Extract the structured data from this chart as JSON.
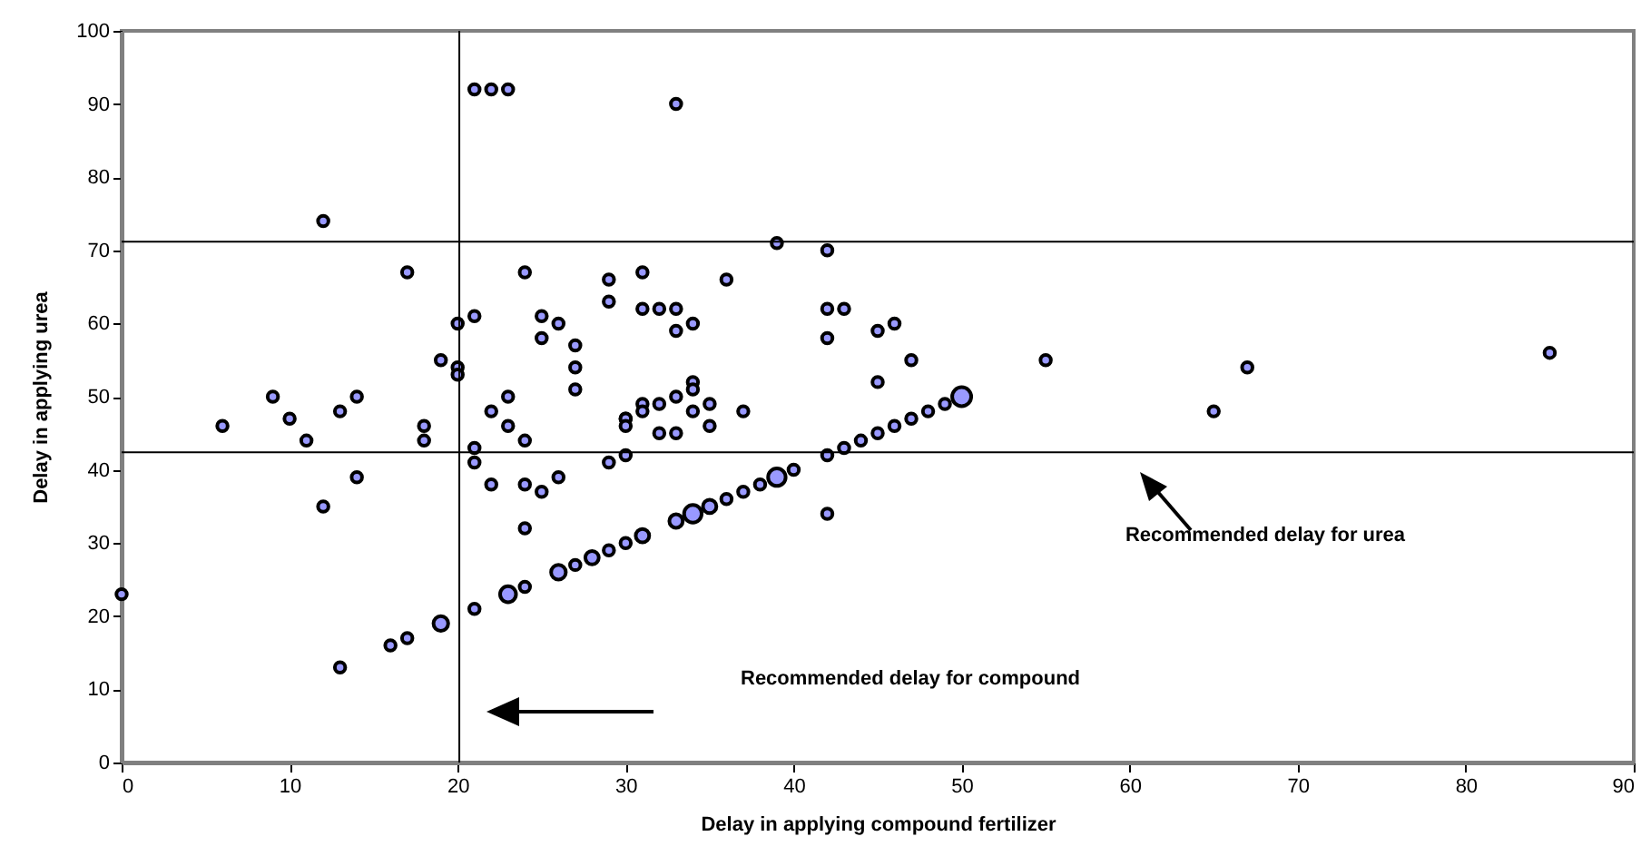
{
  "chart_data": {
    "type": "bubble",
    "xlabel": "Delay in applying compound fertilizer",
    "ylabel": "Delay in applying urea",
    "xlim": [
      0,
      90
    ],
    "xticks": [
      0,
      10,
      20,
      30,
      40,
      50,
      60,
      70,
      80,
      90
    ],
    "ylim": [
      0,
      100
    ],
    "yticks": [
      0,
      10,
      20,
      30,
      40,
      50,
      60,
      70,
      80,
      90,
      100
    ],
    "grid": false,
    "marker": "circle",
    "series": [
      {
        "color": "#9999ff",
        "x": [
          21,
          22,
          23,
          12,
          17,
          24,
          20,
          21,
          25,
          26,
          25,
          27,
          27,
          27,
          19,
          20,
          20,
          9,
          14,
          23,
          13,
          22,
          6,
          10,
          11,
          18,
          18,
          21,
          21,
          23,
          24,
          14,
          12,
          22,
          24,
          25,
          26,
          24,
          0,
          19,
          16,
          17,
          13,
          21,
          23,
          24,
          26,
          27,
          33,
          39,
          42,
          29,
          31,
          36,
          29,
          31,
          32,
          33,
          42,
          43,
          33,
          34,
          42,
          45,
          46,
          47,
          55,
          45,
          34,
          34,
          31,
          31,
          32,
          33,
          35,
          30,
          34,
          37,
          50,
          49,
          48,
          47,
          30,
          30,
          35,
          32,
          33,
          29,
          30,
          42,
          43,
          44,
          45,
          46,
          42,
          40,
          39,
          38,
          37,
          36,
          35,
          34,
          33,
          31,
          30,
          29,
          28,
          67,
          65,
          85
        ],
        "values": [
          92,
          92,
          92,
          74,
          67,
          67,
          60,
          61,
          61,
          60,
          58,
          57,
          54,
          51,
          55,
          54,
          53,
          50,
          50,
          50,
          48,
          48,
          46,
          47,
          44,
          46,
          44,
          43,
          41,
          46,
          44,
          39,
          35,
          38,
          38,
          37,
          39,
          32,
          23,
          19,
          16,
          17,
          13,
          21,
          23,
          24,
          26,
          27,
          90,
          71,
          70,
          66,
          67,
          66,
          63,
          62,
          62,
          62,
          62,
          62,
          59,
          60,
          58,
          59,
          60,
          55,
          55,
          52,
          52,
          51,
          49,
          48,
          49,
          50,
          49,
          47,
          48,
          48,
          50,
          49,
          48,
          47,
          47,
          46,
          46,
          45,
          45,
          41,
          42,
          42,
          43,
          44,
          45,
          46,
          34,
          40,
          39,
          38,
          37,
          36,
          35,
          34,
          33,
          31,
          30,
          29,
          28,
          54,
          48,
          56
        ],
        "sizes": [
          0.3,
          0.3,
          0.3,
          0.3,
          0.3,
          0.3,
          0.3,
          0.3,
          0.3,
          0.3,
          0.3,
          0.3,
          0.3,
          0.3,
          0.3,
          0.3,
          0.3,
          0.3,
          0.3,
          0.3,
          0.3,
          0.3,
          0.3,
          0.3,
          0.3,
          0.3,
          0.3,
          0.3,
          0.3,
          0.3,
          0.3,
          0.3,
          0.3,
          0.3,
          0.3,
          0.3,
          0.3,
          0.3,
          0.3,
          0.6,
          0.3,
          0.3,
          0.3,
          0.3,
          0.7,
          0.3,
          0.6,
          0.3,
          0.3,
          0.3,
          0.3,
          0.3,
          0.3,
          0.3,
          0.3,
          0.3,
          0.3,
          0.3,
          0.3,
          0.3,
          0.3,
          0.3,
          0.3,
          0.3,
          0.3,
          0.3,
          0.3,
          0.3,
          0.3,
          0.3,
          0.3,
          0.3,
          0.3,
          0.3,
          0.3,
          0.3,
          0.3,
          0.3,
          1,
          0.3,
          0.3,
          0.3,
          0.3,
          0.3,
          0.3,
          0.3,
          0.3,
          0.3,
          0.3,
          0.3,
          0.3,
          0.3,
          0.3,
          0.3,
          0.3,
          0.3,
          0.85,
          0.3,
          0.3,
          0.3,
          0.5,
          0.85,
          0.5,
          0.5,
          0.3,
          0.3,
          0.5,
          0.3,
          0.3,
          0.3
        ]
      }
    ],
    "ref_lines": [
      {
        "axis": "y",
        "value": 71.2,
        "color": "#000000"
      },
      {
        "axis": "y",
        "value": 42.4,
        "color": "#000000"
      },
      {
        "axis": "x",
        "value": 20.1,
        "color": "#000000"
      }
    ],
    "annotations": [
      "Recommended delay for urea",
      "Recommended delay for compound"
    ]
  }
}
